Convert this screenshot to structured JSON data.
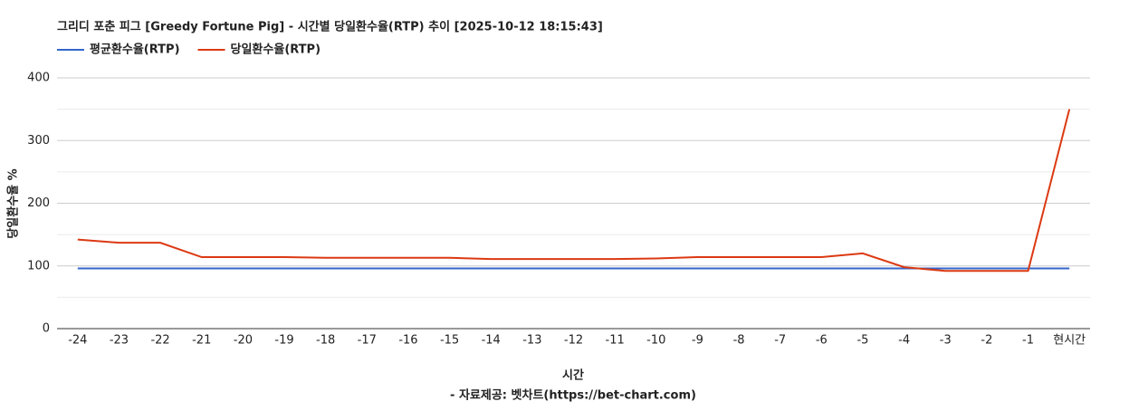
{
  "chart_data": {
    "type": "line",
    "title": "그리디 포춘 피그 [Greedy Fortune Pig] - 시간별 당일환수율(RTP) 추이 [2025-10-12 18:15:43]",
    "y_label": "당일환수율 %",
    "x_label": "시간",
    "source": "- 자료제공: 벳차트(https://bet-chart.com)",
    "categories": [
      "-24",
      "-23",
      "-22",
      "-21",
      "-20",
      "-19",
      "-18",
      "-17",
      "-16",
      "-15",
      "-14",
      "-13",
      "-12",
      "-11",
      "-10",
      "-9",
      "-8",
      "-7",
      "-6",
      "-5",
      "-4",
      "-3",
      "-2",
      "-1",
      "현시간"
    ],
    "series": [
      {
        "name": "평균환수율(RTP)",
        "color": "#3366cc",
        "values": [
          96,
          96,
          96,
          96,
          96,
          96,
          96,
          96,
          96,
          96,
          96,
          96,
          96,
          96,
          96,
          96,
          96,
          96,
          96,
          96,
          96,
          96,
          96,
          96,
          96
        ]
      },
      {
        "name": "당일환수율(RTP)",
        "color": "#dc3912",
        "values": [
          142,
          137,
          137,
          114,
          114,
          114,
          113,
          113,
          113,
          113,
          111,
          111,
          111,
          111,
          112,
          114,
          114,
          114,
          114,
          120,
          98,
          92,
          92,
          92,
          350
        ]
      }
    ],
    "ylim": [
      0,
      400
    ],
    "yticks": [
      0,
      100,
      200,
      300,
      400
    ],
    "minor_yticks": [
      50,
      150,
      250,
      350
    ],
    "grid": true
  }
}
